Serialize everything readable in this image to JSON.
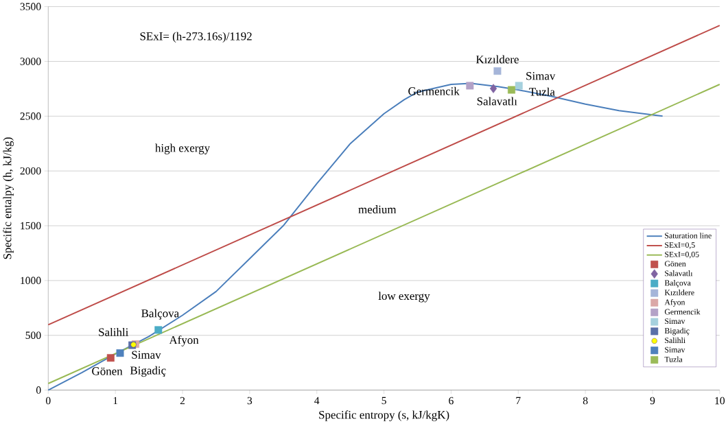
{
  "chart_data": {
    "type": "line",
    "xlabel": "Specific entropy (s, kJ/kgK)",
    "ylabel": "Specific entalpy (h, kJ/kg)",
    "xlim": [
      0,
      10
    ],
    "xticks": [
      0,
      1,
      2,
      3,
      4,
      5,
      6,
      7,
      8,
      9,
      10
    ],
    "ylim": [
      0,
      3500
    ],
    "yticks": [
      0,
      500,
      1000,
      1500,
      2000,
      2500,
      3000,
      3500
    ],
    "grid": "y",
    "legend": "right",
    "series": [
      {
        "name": "Saturation line",
        "color": "#4a7ebb",
        "x": [
          0,
          0.5,
          1,
          1.5,
          2,
          2.5,
          3,
          3.5,
          4,
          4.5,
          5,
          5.3,
          5.5,
          6,
          6.3,
          6.7,
          7,
          7.5,
          8,
          8.5,
          9.15
        ],
        "values": [
          0,
          160,
          330,
          490,
          683,
          900,
          1200,
          1500,
          1884,
          2250,
          2522,
          2650,
          2720,
          2790,
          2800,
          2770,
          2740,
          2680,
          2610,
          2550,
          2500
        ]
      },
      {
        "name": "SExI=0,5",
        "color": "#be4b48",
        "x": [
          0,
          10
        ],
        "values": [
          596,
          3328
        ]
      },
      {
        "name": "SExI=0,05",
        "color": "#98b954",
        "x": [
          0,
          10
        ],
        "values": [
          60,
          2790
        ]
      },
      {
        "name": "Gönen",
        "color": "#c0504d",
        "type": "scatter",
        "marker": "square",
        "x": [
          0.93
        ],
        "values": [
          294
        ]
      },
      {
        "name": "Salavatlı",
        "color": "#8064a2",
        "type": "scatter",
        "marker": "diamond",
        "x": [
          6.63
        ],
        "values": [
          2752
        ]
      },
      {
        "name": "Balçova",
        "color": "#4bacc6",
        "type": "scatter",
        "marker": "square",
        "x": [
          1.64
        ],
        "values": [
          549
        ]
      },
      {
        "name": "Kızıldere",
        "color": "#a5b5d9",
        "type": "scatter",
        "marker": "square",
        "x": [
          6.69
        ],
        "values": [
          2912
        ]
      },
      {
        "name": "Afyon",
        "color": "#dba8a7",
        "type": "scatter",
        "marker": "square",
        "x": [
          1.3
        ],
        "values": [
          420
        ]
      },
      {
        "name": "Germencik",
        "color": "#b3a2c7",
        "type": "scatter",
        "marker": "square",
        "x": [
          6.28
        ],
        "values": [
          2778
        ]
      },
      {
        "name": "Simav",
        "color": "#a6d1de",
        "type": "scatter",
        "marker": "square",
        "x": [
          7.01
        ],
        "values": [
          2778
        ]
      },
      {
        "name": "Bigadiç",
        "color": "#5a6fa8",
        "type": "scatter",
        "marker": "square",
        "x": [
          1.25
        ],
        "values": [
          410
        ]
      },
      {
        "name": "Salihli",
        "color": "#ffff00",
        "type": "scatter",
        "marker": "circle",
        "x": [
          1.27
        ],
        "values": [
          415
        ]
      },
      {
        "name": "Simav",
        "color": "#4f81bd",
        "type": "scatter",
        "marker": "square",
        "x": [
          1.07
        ],
        "values": [
          338
        ]
      },
      {
        "name": "Tuzla",
        "color": "#9bbb59",
        "type": "scatter",
        "marker": "square",
        "x": [
          6.9
        ],
        "values": [
          2740
        ]
      }
    ],
    "annotations": [
      "SExI= (h-273.16s)/1192",
      "high exergy",
      "medium",
      "low exergy",
      {
        "text": "Kızıldere",
        "x": 6.69,
        "y": 2912
      },
      {
        "text": "Simav",
        "x": 7.01,
        "y": 2778
      },
      {
        "text": "Tuzla",
        "x": 6.9,
        "y": 2740
      },
      {
        "text": "Germencik",
        "x": 6.28,
        "y": 2778
      },
      {
        "text": "Salavatlı",
        "x": 6.63,
        "y": 2752
      },
      {
        "text": "Balçova",
        "x": 1.64,
        "y": 549
      },
      {
        "text": "Salihli",
        "x": 1.27,
        "y": 415
      },
      {
        "text": "Afyon",
        "x": 1.3,
        "y": 420
      },
      {
        "text": "Simav",
        "x": 1.07,
        "y": 338
      },
      {
        "text": "Bigadiç",
        "x": 1.25,
        "y": 410
      },
      {
        "text": "Gönen",
        "x": 0.93,
        "y": 294
      }
    ]
  }
}
